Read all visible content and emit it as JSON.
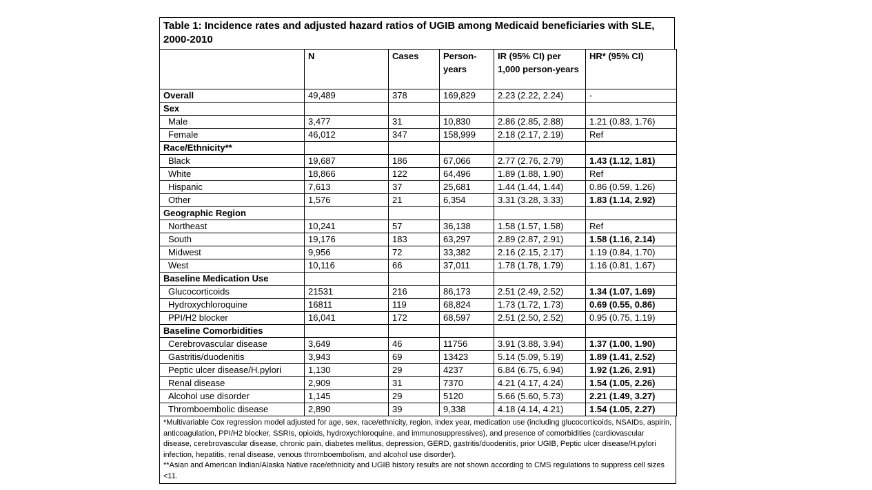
{
  "table": {
    "title": "Table 1: Incidence rates and adjusted hazard ratios of UGIB among Medicaid beneficiaries with SLE, 2000-2010",
    "header": [
      "",
      "N",
      "Cases",
      "Person-years",
      "IR (95% CI) per 1,000 person-years",
      "HR* (95% CI)"
    ],
    "rows": [
      {
        "style": "total",
        "label": "Overall",
        "n": "49,489",
        "cases": "378",
        "py": "169,829",
        "ir": "2.23 (2.22, 2.24)",
        "hr": "-",
        "hr_bold": false
      },
      {
        "style": "section",
        "label": "Sex"
      },
      {
        "style": "item",
        "label": "Male",
        "n": "3,477",
        "cases": "31",
        "py": "10,830",
        "ir": "2.86 (2.85, 2.88)",
        "hr": "1.21 (0.83, 1.76)",
        "hr_bold": false
      },
      {
        "style": "item",
        "label": "Female",
        "n": "46,012",
        "cases": "347",
        "py": "158,999",
        "ir": "2.18 (2.17, 2.19)",
        "hr": "Ref",
        "hr_bold": false
      },
      {
        "style": "section",
        "label": "Race/Ethnicity**"
      },
      {
        "style": "item",
        "label": "Black",
        "n": "19,687",
        "cases": "186",
        "py": "67,066",
        "ir": "2.77 (2.76, 2.79)",
        "hr": "1.43 (1.12, 1.81)",
        "hr_bold": true
      },
      {
        "style": "item",
        "label": "White",
        "n": "18,866",
        "cases": "122",
        "py": "64,496",
        "ir": "1.89 (1.88, 1.90)",
        "hr": "Ref",
        "hr_bold": false
      },
      {
        "style": "item",
        "label": "Hispanic",
        "n": "7,613",
        "cases": "37",
        "py": "25,681",
        "ir": "1.44 (1.44, 1.44)",
        "hr": "0.86 (0.59, 1.26)",
        "hr_bold": false
      },
      {
        "style": "item",
        "label": "Other",
        "n": "1,576",
        "cases": "21",
        "py": "6,354",
        "ir": "3.31 (3.28, 3.33)",
        "hr": "1.83 (1.14, 2.92)",
        "hr_bold": true
      },
      {
        "style": "section",
        "label": "Geographic Region"
      },
      {
        "style": "item",
        "label": "Northeast",
        "n": "10,241",
        "cases": "57",
        "py": "36,138",
        "ir": "1.58 (1.57, 1.58)",
        "hr": "Ref",
        "hr_bold": false
      },
      {
        "style": "item",
        "label": "South",
        "n": "19,176",
        "cases": "183",
        "py": "63,297",
        "ir": "2.89 (2.87, 2.91)",
        "hr": "1.58 (1.16, 2.14)",
        "hr_bold": true
      },
      {
        "style": "item",
        "label": "Midwest",
        "n": "9,956",
        "cases": "72",
        "py": "33,382",
        "ir": "2.16 (2.15, 2.17)",
        "hr": "1.19 (0.84, 1.70)",
        "hr_bold": false
      },
      {
        "style": "item",
        "label": "West",
        "n": "10,116",
        "cases": "66",
        "py": "37,011",
        "ir": "1.78 (1.78, 1.79)",
        "hr": "1.16 (0.81, 1.67)",
        "hr_bold": false
      },
      {
        "style": "section",
        "label": "Baseline Medication Use"
      },
      {
        "style": "item",
        "label": "Glucocorticoids",
        "n": "21531",
        "cases": "216",
        "py": "86,173",
        "ir": "2.51 (2.49, 2.52)",
        "hr": "1.34 (1.07, 1.69)",
        "hr_bold": true
      },
      {
        "style": "item",
        "label": "Hydroxychloroquine",
        "n": "16811",
        "cases": "119",
        "py": "68,824",
        "ir": "1.73 (1.72, 1.73)",
        "hr": "0.69 (0.55, 0.86)",
        "hr_bold": true
      },
      {
        "style": "item",
        "label": "PPI/H2 blocker",
        "n": "16,041",
        "cases": "172",
        "py": "68,597",
        "ir": "2.51 (2.50, 2.52)",
        "hr": "0.95 (0.75, 1.19)",
        "hr_bold": false
      },
      {
        "style": "section",
        "label": "Baseline Comorbidities"
      },
      {
        "style": "item",
        "label": "Cerebrovascular disease",
        "n": "3,649",
        "cases": "46",
        "py": "11756",
        "ir": "3.91 (3.88, 3.94)",
        "hr": "1.37 (1.00, 1.90)",
        "hr_bold": true
      },
      {
        "style": "item",
        "label": "Gastritis/duodenitis",
        "n": "3,943",
        "cases": "69",
        "py": "13423",
        "ir": "5.14 (5.09, 5.19)",
        "hr": "1.89 (1.41, 2.52)",
        "hr_bold": true
      },
      {
        "style": "item",
        "label": "Peptic ulcer disease/H.pylori",
        "n": "1,130",
        "cases": "29",
        "py": "4237",
        "ir": "6.84 (6.75, 6.94)",
        "hr": "1.92 (1.26, 2.91)",
        "hr_bold": true
      },
      {
        "style": "item",
        "label": "Renal disease",
        "n": "2,909",
        "cases": "31",
        "py": "7370",
        "ir": "4.21 (4.17, 4.24)",
        "hr": "1.54 (1.05, 2.26)",
        "hr_bold": true
      },
      {
        "style": "item",
        "label": "Alcohol use disorder",
        "n": "1,145",
        "cases": "29",
        "py": "5120",
        "ir": "5.66 (5.60, 5.73)",
        "hr": "2.21 (1.49, 3.27)",
        "hr_bold": true
      },
      {
        "style": "item",
        "label": "Thromboembolic disease",
        "n": "2,890",
        "cases": "39",
        "py": "9,338",
        "ir": "4.18 (4.14, 4.21)",
        "hr": "1.54 (1.05, 2.27)",
        "hr_bold": true
      }
    ],
    "footnotes": [
      "*Multivariable Cox regression model adjusted for age, sex, race/ethnicity, region, index year, medication use (including glucocorticoids, NSAIDs, aspirin, anticoagulation, PPI/H2 blocker, SSRIs, opioids, hydroxychloroquine, and immunosuppressives), and presence of comorbidities (cardiovascular disease, cerebrovascular disease, chronic pain, diabetes mellitus, depression, GERD, gastritis/duodenitis, prior UGIB, Peptic ulcer disease/H.pylori infection, hepatitis, renal disease, venous thromboembolism, and alcohol use disorder).",
      "**Asian and American Indian/Alaska Native race/ethnicity and UGIB history results are not shown according to CMS regulations to suppress cell sizes <11."
    ]
  }
}
